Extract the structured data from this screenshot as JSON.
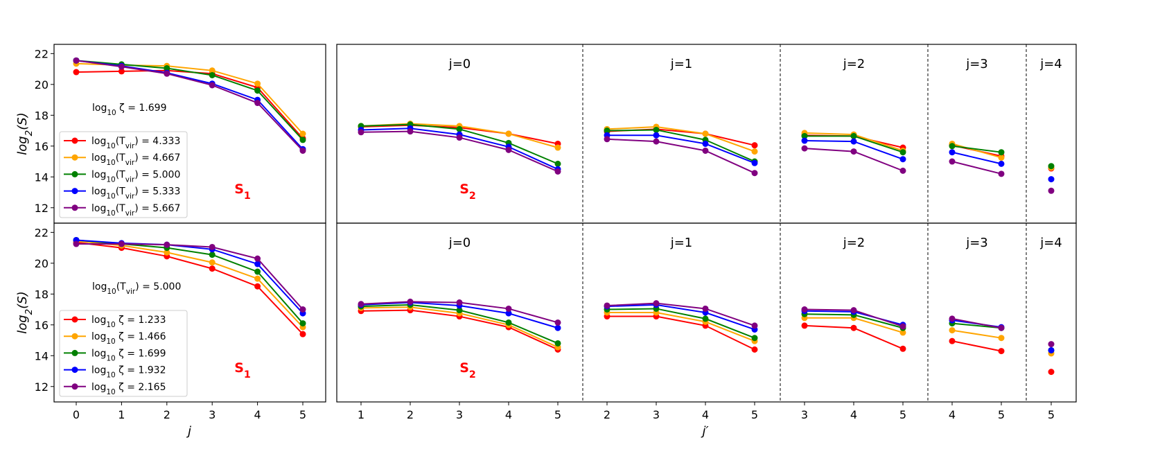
{
  "colors": [
    "#ff0000",
    "#ffa500",
    "#008000",
    "#0000ff",
    "#800080"
  ],
  "chart_data": [
    {
      "type": "line",
      "id": "top-left",
      "xlabel": "",
      "ylabel": "log2(S)",
      "ylim": [
        11,
        22.6
      ],
      "xticks": [
        "0",
        "1",
        "2",
        "3",
        "4",
        "5"
      ],
      "yticks": [
        "12",
        "14",
        "16",
        "18",
        "20",
        "22"
      ],
      "x": [
        0,
        1,
        2,
        3,
        4,
        5
      ],
      "fixed_param": "log10 ζ = 1.699",
      "panel_label": "S",
      "panel_sub": "1",
      "legend": [
        "log10(Tvir) = 4.333",
        "log10(Tvir) = 4.667",
        "log10(Tvir) = 5.000",
        "log10(Tvir) = 5.333",
        "log10(Tvir) = 5.667"
      ],
      "series": [
        {
          "name": "log10(Tvir) = 4.333",
          "values": [
            20.8,
            20.85,
            20.9,
            20.7,
            19.8,
            16.5
          ]
        },
        {
          "name": "log10(Tvir) = 4.667",
          "values": [
            21.35,
            21.25,
            21.2,
            20.9,
            20.05,
            16.8
          ]
        },
        {
          "name": "log10(Tvir) = 5.000",
          "values": [
            21.55,
            21.3,
            21.05,
            20.6,
            19.6,
            16.4
          ]
        },
        {
          "name": "log10(Tvir) = 5.333",
          "values": [
            21.55,
            21.2,
            20.75,
            20.05,
            19.0,
            15.8
          ]
        },
        {
          "name": "log10(Tvir) = 5.667",
          "values": [
            21.55,
            21.15,
            20.7,
            19.95,
            18.8,
            15.7
          ]
        }
      ]
    },
    {
      "type": "line",
      "id": "top-right",
      "ylim": [
        11,
        22.6
      ],
      "panel_label": "S",
      "panel_sub": "2",
      "groups": [
        {
          "label": "j=0",
          "x": [
            1,
            2,
            3,
            4,
            5
          ],
          "series": [
            {
              "name": "log10(Tvir) = 4.333",
              "values": [
                17.25,
                17.35,
                17.2,
                16.8,
                16.15
              ]
            },
            {
              "name": "log10(Tvir) = 4.667",
              "values": [
                17.3,
                17.45,
                17.3,
                16.8,
                15.9
              ]
            },
            {
              "name": "log10(Tvir) = 5.000",
              "values": [
                17.3,
                17.4,
                17.1,
                16.2,
                14.85
              ]
            },
            {
              "name": "log10(Tvir) = 5.333",
              "values": [
                17.05,
                17.15,
                16.75,
                15.95,
                14.5
              ]
            },
            {
              "name": "log10(Tvir) = 5.667",
              "values": [
                16.9,
                16.95,
                16.55,
                15.75,
                14.35
              ]
            }
          ]
        },
        {
          "label": "j=1",
          "x": [
            2,
            3,
            4,
            5
          ],
          "series": [
            {
              "name": "log10(Tvir) = 4.333",
              "values": [
                16.95,
                17.1,
                16.8,
                16.05
              ]
            },
            {
              "name": "log10(Tvir) = 4.667",
              "values": [
                17.1,
                17.25,
                16.8,
                15.65
              ]
            },
            {
              "name": "log10(Tvir) = 5.000",
              "values": [
                17.0,
                17.05,
                16.4,
                15.0
              ]
            },
            {
              "name": "log10(Tvir) = 5.333",
              "values": [
                16.7,
                16.7,
                16.15,
                14.9
              ]
            },
            {
              "name": "log10(Tvir) = 5.667",
              "values": [
                16.45,
                16.3,
                15.7,
                14.25
              ]
            }
          ]
        },
        {
          "label": "j=2",
          "x": [
            3,
            4,
            5
          ],
          "series": [
            {
              "name": "log10(Tvir) = 4.333",
              "values": [
                16.7,
                16.65,
                15.9
              ]
            },
            {
              "name": "log10(Tvir) = 4.667",
              "values": [
                16.85,
                16.75,
                15.7
              ]
            },
            {
              "name": "log10(Tvir) = 5.000",
              "values": [
                16.65,
                16.65,
                15.6
              ]
            },
            {
              "name": "log10(Tvir) = 5.333",
              "values": [
                16.35,
                16.3,
                15.15
              ]
            },
            {
              "name": "log10(Tvir) = 5.667",
              "values": [
                15.85,
                15.65,
                14.4
              ]
            }
          ]
        },
        {
          "label": "j=3",
          "x": [
            4,
            5
          ],
          "series": [
            {
              "name": "log10(Tvir) = 4.333",
              "values": [
                16.05,
                15.35
              ]
            },
            {
              "name": "log10(Tvir) = 4.667",
              "values": [
                16.15,
                15.25
              ]
            },
            {
              "name": "log10(Tvir) = 5.000",
              "values": [
                16.0,
                15.6
              ]
            },
            {
              "name": "log10(Tvir) = 5.333",
              "values": [
                15.6,
                14.85
              ]
            },
            {
              "name": "log10(Tvir) = 5.667",
              "values": [
                15.0,
                14.2
              ]
            }
          ]
        },
        {
          "label": "j=4",
          "x": [
            5
          ],
          "series": [
            {
              "name": "log10(Tvir) = 4.333",
              "values": [
                14.55
              ]
            },
            {
              "name": "log10(Tvir) = 4.667",
              "values": [
                14.6
              ]
            },
            {
              "name": "log10(Tvir) = 5.000",
              "values": [
                14.7
              ]
            },
            {
              "name": "log10(Tvir) = 5.333",
              "values": [
                13.85
              ]
            },
            {
              "name": "log10(Tvir) = 5.667",
              "values": [
                13.1
              ]
            }
          ]
        }
      ]
    },
    {
      "type": "line",
      "id": "bottom-left",
      "xlabel": "j",
      "ylabel": "log2(S)",
      "ylim": [
        11,
        22.6
      ],
      "xticks": [
        "0",
        "1",
        "2",
        "3",
        "4",
        "5"
      ],
      "yticks": [
        "12",
        "14",
        "16",
        "18",
        "20",
        "22"
      ],
      "x": [
        0,
        1,
        2,
        3,
        4,
        5
      ],
      "fixed_param": "log10(Tvir) = 5.000",
      "panel_label": "S",
      "panel_sub": "1",
      "legend": [
        "log10 ζ = 1.233",
        "log10 ζ = 1.466",
        "log10 ζ = 1.699",
        "log10 ζ = 1.932",
        "log10 ζ = 2.165"
      ],
      "series": [
        {
          "name": "log10 ζ = 1.233",
          "values": [
            21.35,
            21.0,
            20.45,
            19.65,
            18.5,
            15.4
          ]
        },
        {
          "name": "log10 ζ = 1.466",
          "values": [
            21.45,
            21.15,
            20.7,
            20.05,
            19.0,
            15.85
          ]
        },
        {
          "name": "log10 ζ = 1.699",
          "values": [
            21.5,
            21.25,
            21.0,
            20.55,
            19.45,
            16.1
          ]
        },
        {
          "name": "log10 ζ = 1.932",
          "values": [
            21.5,
            21.3,
            21.2,
            20.9,
            19.95,
            16.75
          ]
        },
        {
          "name": "log10 ζ = 2.165",
          "values": [
            21.25,
            21.25,
            21.2,
            21.05,
            20.3,
            17.0
          ]
        }
      ]
    },
    {
      "type": "line",
      "id": "bottom-right",
      "xlabel": "j′",
      "ylim": [
        11,
        22.6
      ],
      "panel_label": "S",
      "panel_sub": "2",
      "groups": [
        {
          "label": "j=0",
          "x": [
            1,
            2,
            3,
            4,
            5
          ],
          "series": [
            {
              "name": "log10 ζ = 1.233",
              "values": [
                16.9,
                16.95,
                16.55,
                15.85,
                14.4
              ]
            },
            {
              "name": "log10 ζ = 1.466",
              "values": [
                17.1,
                17.15,
                16.75,
                16.0,
                14.55
              ]
            },
            {
              "name": "log10 ζ = 1.699",
              "values": [
                17.2,
                17.3,
                16.95,
                16.15,
                14.8
              ]
            },
            {
              "name": "log10 ζ = 1.932",
              "values": [
                17.3,
                17.45,
                17.25,
                16.75,
                15.8
              ]
            },
            {
              "name": "log10 ζ = 2.165",
              "values": [
                17.35,
                17.5,
                17.45,
                17.05,
                16.15
              ]
            }
          ]
        },
        {
          "label": "j=1",
          "x": [
            2,
            3,
            4,
            5
          ],
          "series": [
            {
              "name": "log10 ζ = 1.233",
              "values": [
                16.55,
                16.55,
                15.95,
                14.4
              ]
            },
            {
              "name": "log10 ζ = 1.466",
              "values": [
                16.8,
                16.8,
                16.2,
                14.95
              ]
            },
            {
              "name": "log10 ζ = 1.699",
              "values": [
                17.0,
                17.05,
                16.4,
                15.15
              ]
            },
            {
              "name": "log10 ζ = 1.932",
              "values": [
                17.2,
                17.3,
                16.8,
                15.7
              ]
            },
            {
              "name": "log10 ζ = 2.165",
              "values": [
                17.25,
                17.4,
                17.05,
                15.95
              ]
            }
          ]
        },
        {
          "label": "j=2",
          "x": [
            3,
            4,
            5
          ],
          "series": [
            {
              "name": "log10 ζ = 1.233",
              "values": [
                15.95,
                15.8,
                14.45
              ]
            },
            {
              "name": "log10 ζ = 1.466",
              "values": [
                16.45,
                16.45,
                15.5
              ]
            },
            {
              "name": "log10 ζ = 1.699",
              "values": [
                16.7,
                16.65,
                15.8
              ]
            },
            {
              "name": "log10 ζ = 1.932",
              "values": [
                16.9,
                16.85,
                16.0
              ]
            },
            {
              "name": "log10 ζ = 2.165",
              "values": [
                17.0,
                16.95,
                15.9
              ]
            }
          ]
        },
        {
          "label": "j=3",
          "x": [
            4,
            5
          ],
          "series": [
            {
              "name": "log10 ζ = 1.233",
              "values": [
                14.95,
                14.3
              ]
            },
            {
              "name": "log10 ζ = 1.466",
              "values": [
                15.65,
                15.15
              ]
            },
            {
              "name": "log10 ζ = 1.699",
              "values": [
                16.1,
                15.8
              ]
            },
            {
              "name": "log10 ζ = 1.932",
              "values": [
                16.3,
                15.85
              ]
            },
            {
              "name": "log10 ζ = 2.165",
              "values": [
                16.4,
                15.8
              ]
            }
          ]
        },
        {
          "label": "j=4",
          "x": [
            5
          ],
          "series": [
            {
              "name": "log10 ζ = 1.233",
              "values": [
                12.95
              ]
            },
            {
              "name": "log10 ζ = 1.466",
              "values": [
                14.15
              ]
            },
            {
              "name": "log10 ζ = 1.699",
              "values": [
                14.35
              ]
            },
            {
              "name": "log10 ζ = 1.932",
              "values": [
                14.35
              ]
            },
            {
              "name": "log10 ζ = 2.165",
              "values": [
                14.75
              ]
            }
          ]
        }
      ]
    }
  ]
}
